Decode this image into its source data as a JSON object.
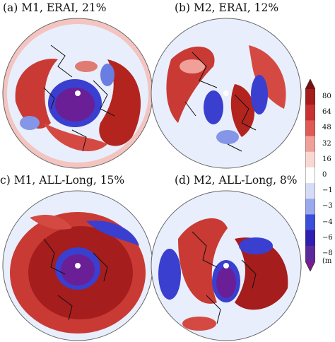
{
  "panels": [
    {
      "id": "a",
      "title": "(a) M1, ERAI, 21%"
    },
    {
      "id": "b",
      "title": "(b) M2, ERAI, 12%"
    },
    {
      "id": "c",
      "title": "(c) M1, ALL-Long, 15%"
    },
    {
      "id": "d",
      "title": "(d) M2, ALL-Long, 8%"
    }
  ],
  "colorbar": {
    "labels": [
      "80",
      "64",
      "48",
      "32",
      "16",
      "0",
      "−1",
      "−3",
      "−4",
      "−6",
      "−8"
    ],
    "unit": "(m",
    "colors": [
      "#7a1010",
      "#a51d1d",
      "#c83232",
      "#de5a52",
      "#f0a098",
      "#fad8d2",
      "#ffffff",
      "#d6dcf6",
      "#9aa8ee",
      "#3c4fd8",
      "#2e1fb0",
      "#5a2a9a",
      "#7b1c8a"
    ]
  }
}
